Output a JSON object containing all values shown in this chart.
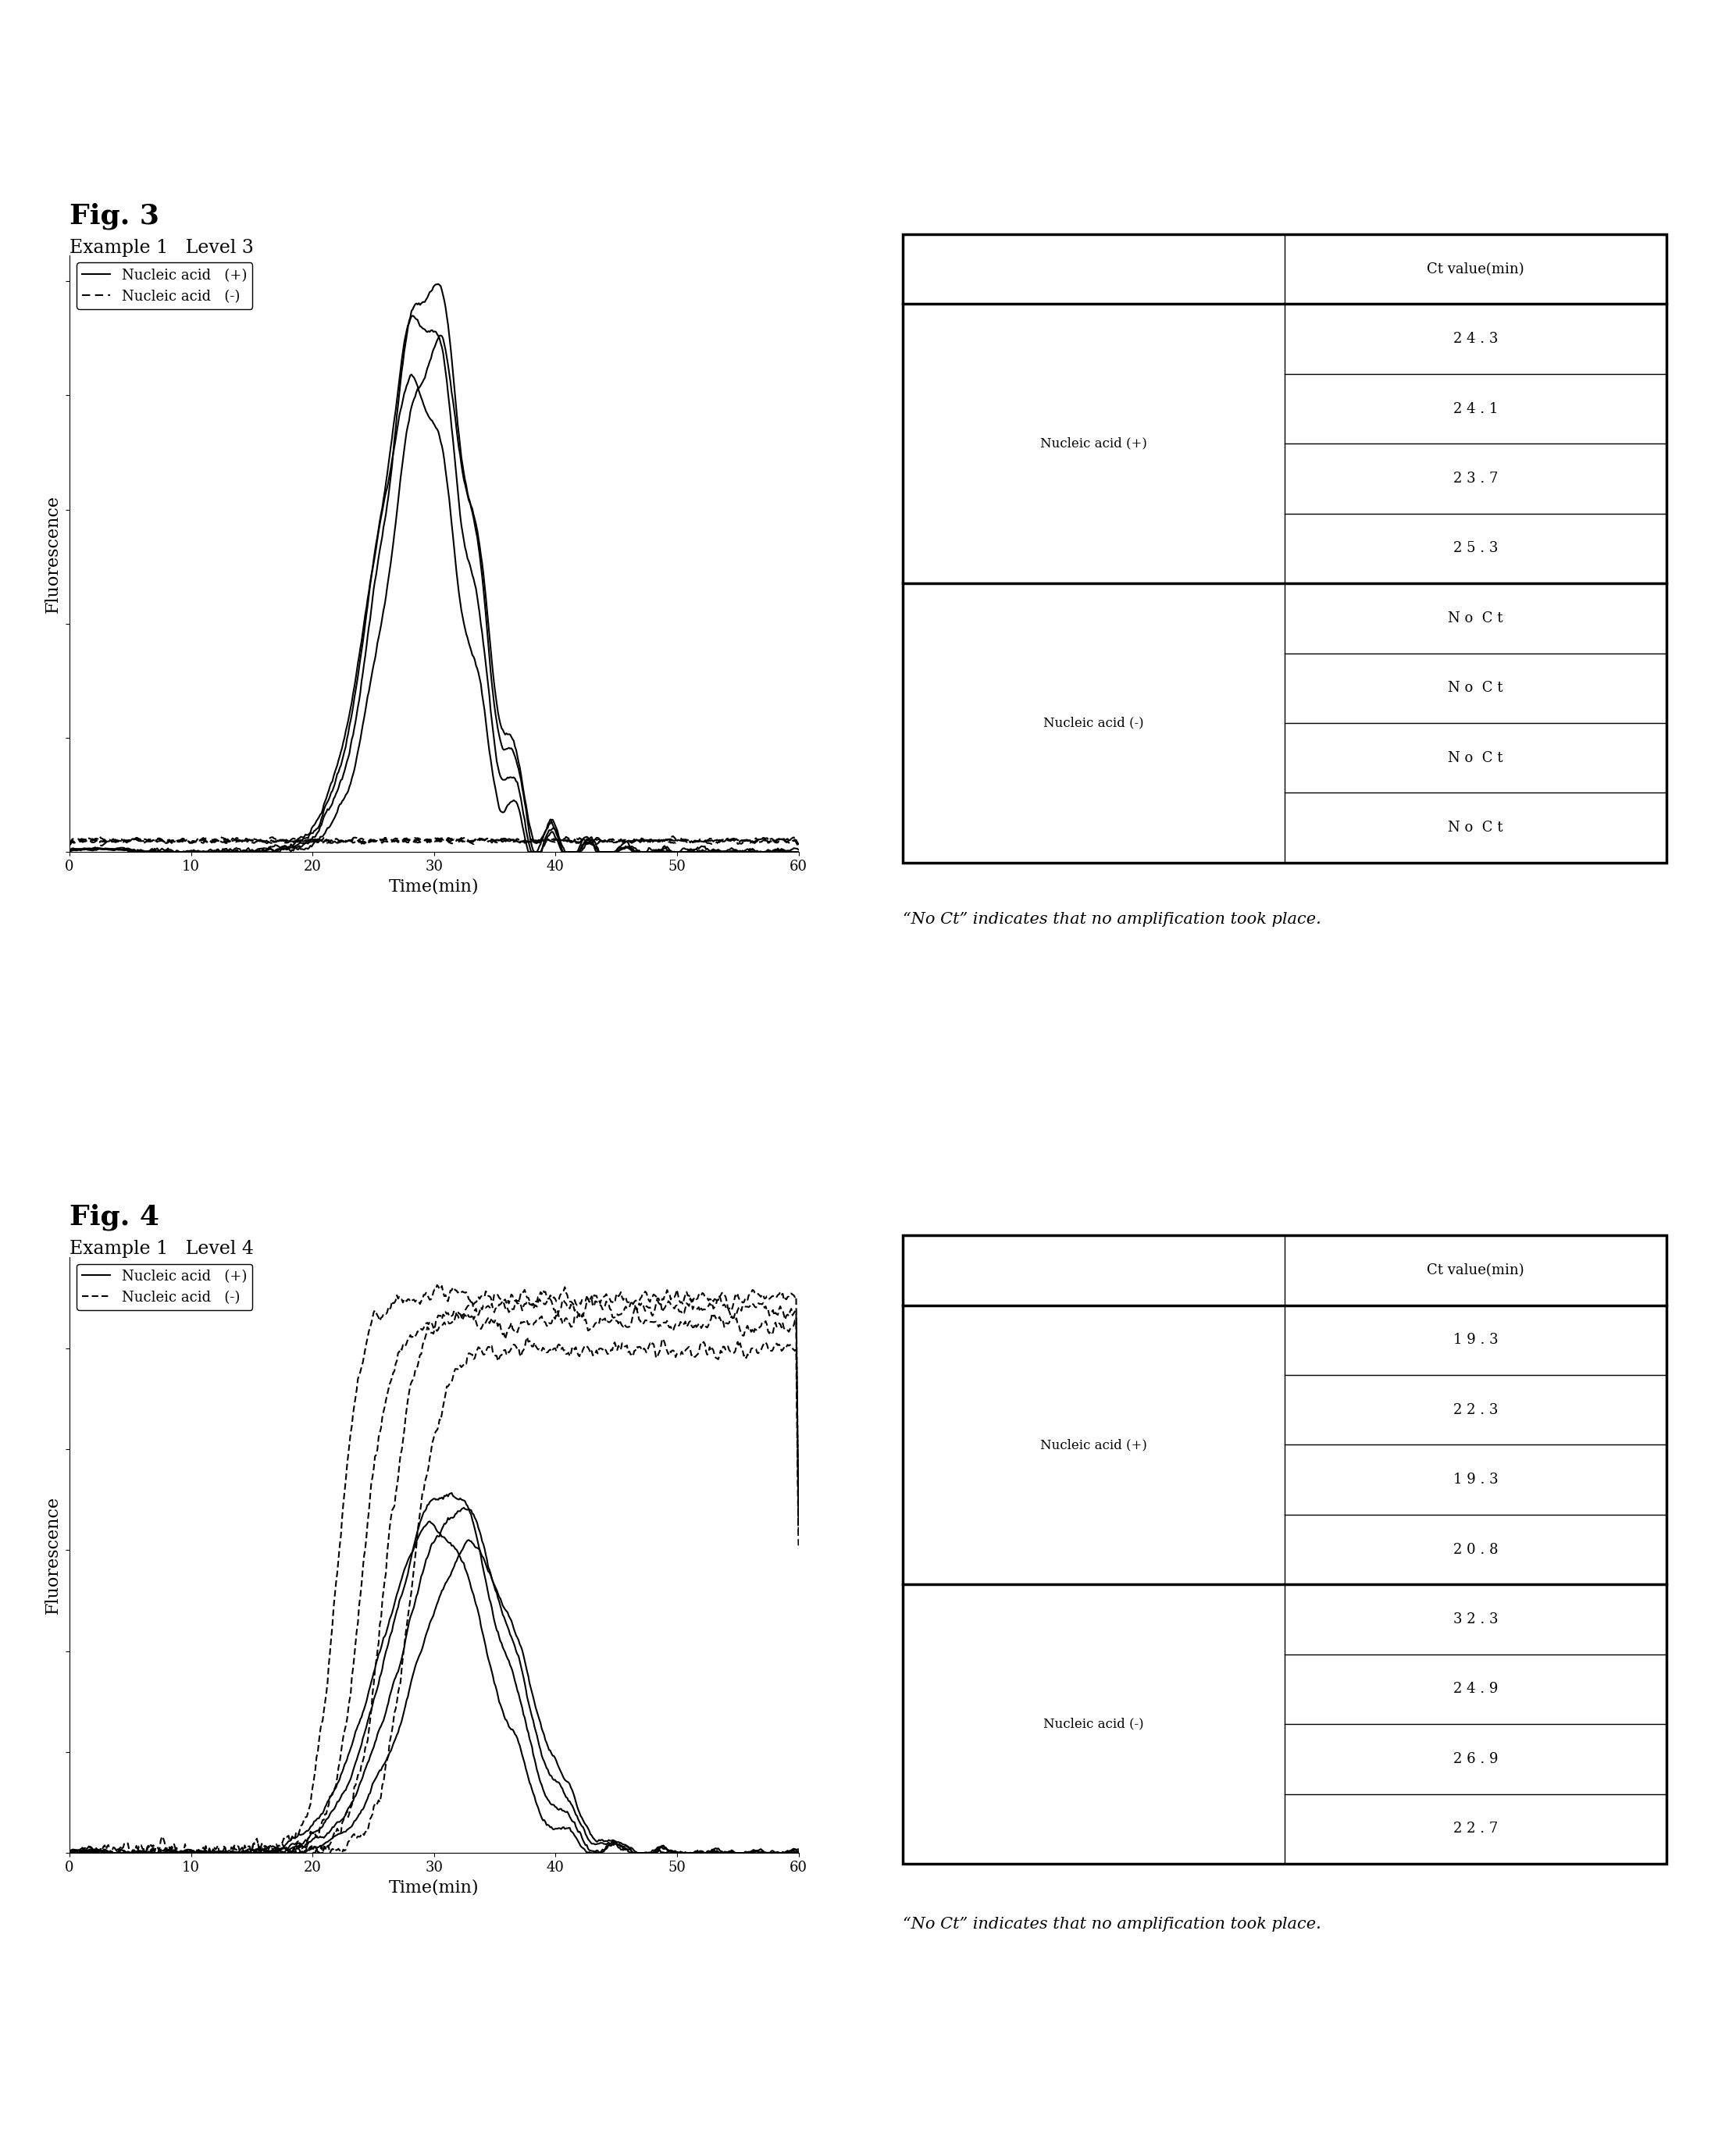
{
  "fig3_title": "Fig. 3",
  "fig3_subtitle": "Example 1   Level 3",
  "fig4_title": "Fig. 4",
  "fig4_subtitle": "Example 1   Level 4",
  "fig3_table": {
    "col_header": "Ct value(min)",
    "row1_label": "Nucleic acid (+)",
    "row1_values": [
      "2 4 . 3",
      "2 4 . 1",
      "2 3 . 7",
      "2 5 . 3"
    ],
    "row2_label": "Nucleic acid (-)",
    "row2_values": [
      "N o  C t",
      "N o  C t",
      "N o  C t",
      "N o  C t"
    ]
  },
  "fig4_table": {
    "col_header": "Ct value(min)",
    "row1_label": "Nucleic acid (+)",
    "row1_values": [
      "1 9 . 3",
      "2 2 . 3",
      "1 9 . 3",
      "2 0 . 8"
    ],
    "row2_label": "Nucleic acid (-)",
    "row2_values": [
      "3 2 . 3",
      "2 4 . 9",
      "2 6 . 9",
      "2 2 . 7"
    ]
  },
  "note": "“No Ct” indicates that no amplification took place.",
  "xlabel": "Time(min)",
  "ylabel": "Fluorescence",
  "legend_solid": "Nucleic acid   (+)",
  "legend_dash": "Nucleic acid   (-)",
  "bg_color": "#ffffff",
  "line_color": "#000000"
}
